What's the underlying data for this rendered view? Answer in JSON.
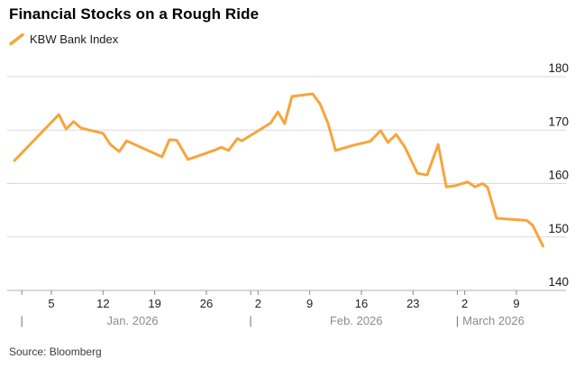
{
  "header": {
    "title": "Financial Stocks on a Rough Ride"
  },
  "legend": {
    "label": "KBW Bank Index"
  },
  "footer": {
    "source": "Source: Bloomberg"
  },
  "colors": {
    "line": "#F7A53C",
    "grid": "#D9D9D9",
    "axis": "#B3B3B3",
    "tick_mark": "#8A8A8A",
    "x_tick_label": "#222222",
    "y_tick_label": "#1A1A1A",
    "month_label": "#8C8C8C",
    "month_separator": "#7A7A7A"
  },
  "chart_data": {
    "type": "line",
    "title": "Financial Stocks on a Rough Ride",
    "series_name": "KBW Bank Index",
    "x_unit": "days_since_dec31_2025",
    "x_range_days": [
      -0.7,
      75
    ],
    "ylim": [
      140,
      183
    ],
    "grid": true,
    "legend_position": "top-left",
    "y_axis": {
      "side": "right",
      "ticks": [
        {
          "v": 180,
          "label": "180"
        },
        {
          "v": 170,
          "label": "170"
        },
        {
          "v": 160,
          "label": "160"
        },
        {
          "v": 150,
          "label": "150"
        },
        {
          "v": 140,
          "label": "140"
        }
      ]
    },
    "x_axis": {
      "week_ticks": [
        {
          "t": 5,
          "label": "5"
        },
        {
          "t": 12,
          "label": "12"
        },
        {
          "t": 19,
          "label": "19"
        },
        {
          "t": 26,
          "label": "26"
        },
        {
          "t": 33,
          "label": "2"
        },
        {
          "t": 40,
          "label": "9"
        },
        {
          "t": 47,
          "label": "16"
        },
        {
          "t": 54,
          "label": "23"
        },
        {
          "t": 61,
          "label": "2"
        },
        {
          "t": 68,
          "label": "9"
        }
      ],
      "months": [
        {
          "sep_t": 1,
          "label": "Jan. 2026",
          "anchor": "middle",
          "label_t": 16
        },
        {
          "sep_t": 32,
          "label": "Feb. 2026",
          "anchor": "middle",
          "label_t": 46.3
        },
        {
          "sep_t": 60,
          "label": "March 2026",
          "anchor": "start",
          "label_t": 60.7
        }
      ]
    },
    "points": [
      [
        0,
        164.3
      ],
      [
        6,
        172.9
      ],
      [
        7,
        170.2
      ],
      [
        8,
        171.6
      ],
      [
        9,
        170.4
      ],
      [
        12,
        169.4
      ],
      [
        13,
        167.3
      ],
      [
        14.2,
        166.0
      ],
      [
        15.2,
        168.0
      ],
      [
        20,
        165.0
      ],
      [
        21,
        168.2
      ],
      [
        22,
        168.1
      ],
      [
        23.5,
        164.5
      ],
      [
        25.6,
        165.5
      ],
      [
        27.2,
        166.3
      ],
      [
        28,
        166.8
      ],
      [
        29,
        166.2
      ],
      [
        30.2,
        168.4
      ],
      [
        30.8,
        168.0
      ],
      [
        34.7,
        171.3
      ],
      [
        35.7,
        173.4
      ],
      [
        36.6,
        171.2
      ],
      [
        37.6,
        176.3
      ],
      [
        40.4,
        176.8
      ],
      [
        41.4,
        174.9
      ],
      [
        42.5,
        171.2
      ],
      [
        43.5,
        166.2
      ],
      [
        46,
        167.2
      ],
      [
        48.2,
        167.9
      ],
      [
        49.6,
        169.9
      ],
      [
        50.6,
        167.7
      ],
      [
        51.7,
        169.2
      ],
      [
        52.9,
        166.8
      ],
      [
        54.6,
        161.9
      ],
      [
        55.9,
        161.6
      ],
      [
        57.4,
        167.3
      ],
      [
        58.5,
        159.4
      ],
      [
        59.7,
        159.6
      ],
      [
        61.4,
        160.3
      ],
      [
        62.4,
        159.4
      ],
      [
        63.4,
        160.0
      ],
      [
        64.1,
        159.3
      ],
      [
        65.3,
        153.5
      ],
      [
        69.4,
        153.1
      ],
      [
        70.2,
        152.2
      ],
      [
        71.6,
        148.3
      ]
    ]
  }
}
